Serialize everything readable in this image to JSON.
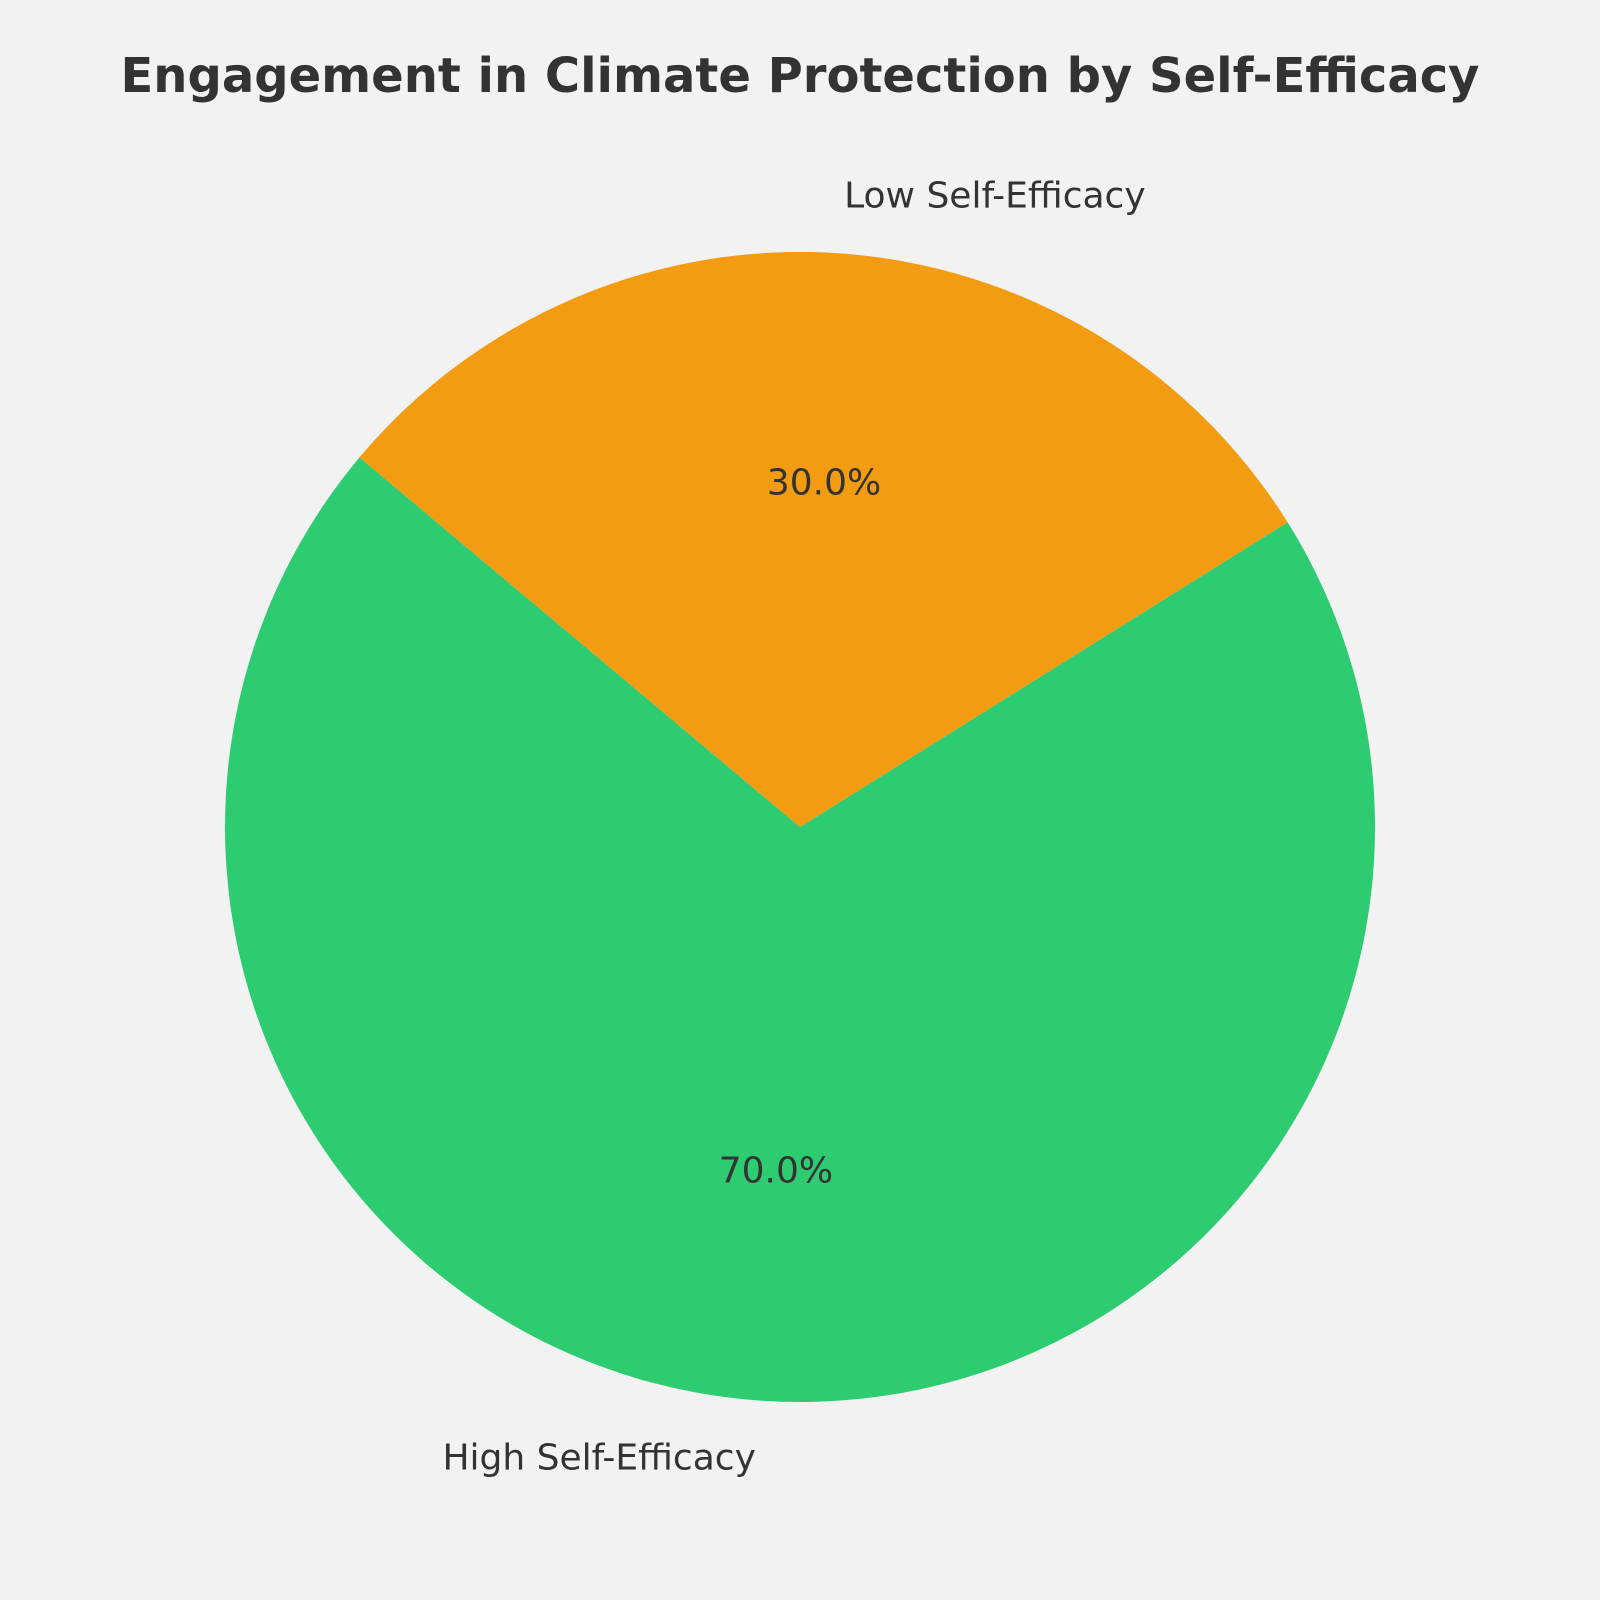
{
  "chart_data": {
    "type": "pie",
    "title": "Engagement in Climate Protection by Self-Efficacy",
    "categories": [
      "High Self-Efficacy",
      "Low Self-Efficacy"
    ],
    "values": [
      70.0,
      30.0
    ],
    "value_labels": [
      "70.0%",
      "30.0%"
    ],
    "colors": [
      "#2ecc71",
      "#f39c12"
    ],
    "legend": "none"
  },
  "colors": {
    "background": "#f2f2f2",
    "text": "#333333"
  }
}
